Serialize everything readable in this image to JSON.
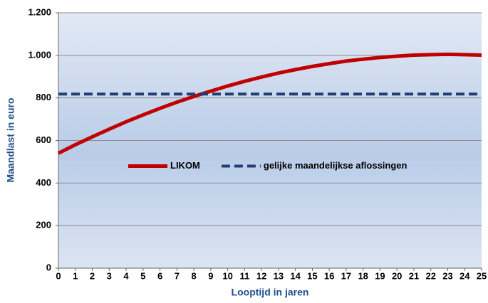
{
  "chart_data": {
    "type": "line",
    "xlabel": "Looptijd in jaren",
    "ylabel": "Maandlast in euro",
    "x": [
      0,
      1,
      2,
      3,
      4,
      5,
      6,
      7,
      8,
      9,
      10,
      11,
      12,
      13,
      14,
      15,
      16,
      17,
      18,
      19,
      20,
      21,
      22,
      23,
      24,
      25
    ],
    "series": [
      {
        "name": "LIKOM",
        "color": "#c00000",
        "dashed": false,
        "values": [
          540,
          580,
          617,
          653,
          688,
          720,
          751,
          780,
          807,
          832,
          856,
          878,
          898,
          917,
          933,
          948,
          961,
          973,
          982,
          990,
          996,
          1001,
          1003,
          1005,
          1003,
          1001
        ]
      },
      {
        "name": "gelijke maandelijkse aflossingen",
        "color": "#1f3f73",
        "dashed": true,
        "values": [
          818,
          818,
          818,
          818,
          818,
          818,
          818,
          818,
          818,
          818,
          818,
          818,
          818,
          818,
          818,
          818,
          818,
          818,
          818,
          818,
          818,
          818,
          818,
          818,
          818,
          818
        ]
      }
    ],
    "xlim": [
      0,
      25
    ],
    "xticks": [
      0,
      1,
      2,
      3,
      4,
      5,
      6,
      7,
      8,
      9,
      10,
      11,
      12,
      13,
      14,
      15,
      16,
      17,
      18,
      19,
      20,
      21,
      22,
      23,
      24,
      25
    ],
    "ylim": [
      0,
      1200
    ],
    "yticks": [
      0,
      200,
      400,
      600,
      800,
      {
        "value": 1000,
        "label": "1.000"
      },
      {
        "value": 1200,
        "label": "1.200"
      }
    ],
    "grid": true,
    "legend": "center"
  }
}
